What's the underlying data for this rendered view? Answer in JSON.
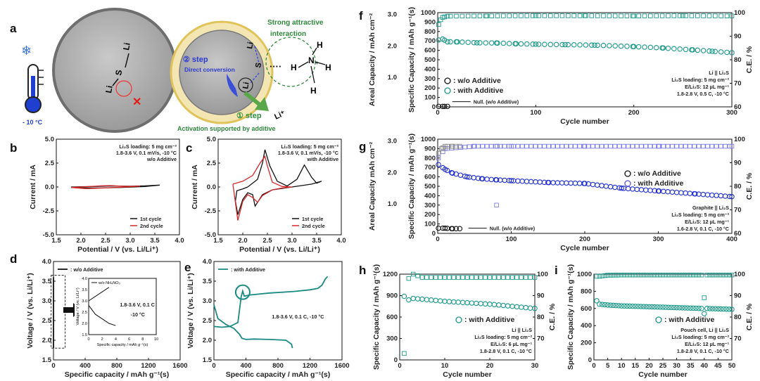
{
  "panels": {
    "a": {
      "label": "a",
      "temperature": "- 10 °C",
      "strong_attractive": "Strong attractive",
      "interaction": "interaction",
      "step2": "② step",
      "direct_conversion": "Direct conversion",
      "step1": "① step",
      "activation": "Activation supported by additive",
      "li_ion": "Li⁺",
      "atom_li": "Li",
      "atom_s": "S",
      "atom_n": "N",
      "atom_h": "H",
      "bond_dots": "····"
    },
    "b": {
      "label": "b",
      "chart_data": {
        "type": "line",
        "title": "",
        "xlabel": "Potential / V (vs. Li/Li⁺)",
        "ylabel": "Current / mA",
        "xlim": [
          1.5,
          4.0
        ],
        "ylim": [
          -5.0,
          5.0
        ],
        "xticks": [
          "1.5",
          "2.0",
          "2.5",
          "3.0",
          "3.5",
          "4.0"
        ],
        "yticks": [
          "-5.0",
          "-2.5",
          "0.0",
          "2.5",
          "5.0"
        ],
        "annotations": [
          "Li₂S loading: 5 mg cm⁻²",
          "1.8-3.6 V, 0.1 mV/s, -10 °C",
          "w/o Additive"
        ],
        "series": [
          {
            "name": "1st cycle",
            "color": "#111111",
            "x": [
              1.8,
              2.0,
              2.3,
              2.6,
              3.0,
              3.3,
              3.6,
              3.3,
              2.8,
              2.4,
              2.0,
              1.8
            ],
            "y": [
              0.0,
              0.02,
              0.06,
              0.1,
              0.08,
              0.12,
              0.2,
              0.05,
              -0.05,
              -0.1,
              -0.08,
              0.0
            ]
          },
          {
            "name": "2nd cycle",
            "color": "#d62728",
            "x": [
              1.8,
              2.1,
              2.4,
              2.6,
              2.9,
              3.2,
              2.8,
              2.4,
              2.1,
              1.8
            ],
            "y": [
              -0.05,
              0.02,
              0.12,
              0.15,
              0.06,
              0.08,
              -0.03,
              -0.12,
              -0.18,
              -0.05
            ]
          }
        ]
      }
    },
    "c": {
      "label": "c",
      "chart_data": {
        "type": "line",
        "title": "",
        "xlabel": "Potential / V (vs. Li/Li⁺)",
        "ylabel": "Current / mA",
        "xlim": [
          1.5,
          4.0
        ],
        "ylim": [
          -5.0,
          5.0
        ],
        "xticks": [
          "1.5",
          "2.0",
          "2.5",
          "3.0",
          "3.5",
          "4.0"
        ],
        "yticks": [
          "-5.0",
          "-2.5",
          "0.0",
          "2.5",
          "5.0"
        ],
        "annotations": [
          "Li₂S loading: 5 mg cm⁻²",
          "1.8-3.6 V, 0.1 mV/s, -10 °C",
          "with Additive"
        ],
        "series": [
          {
            "name": "1st cycle",
            "color": "#111111",
            "x": [
              2.1,
              2.3,
              2.4,
              2.45,
              2.55,
              2.7,
              2.9,
              3.1,
              3.25,
              3.4,
              3.5,
              3.6,
              3.4,
              3.0,
              2.6,
              2.4,
              2.25,
              2.2,
              2.1,
              2.0,
              1.9,
              1.85,
              1.88,
              2.0,
              2.1
            ],
            "y": [
              0.0,
              0.8,
              2.5,
              3.9,
              2.2,
              0.6,
              0.1,
              0.8,
              2.3,
              1.0,
              0.4,
              0.6,
              0.3,
              0.0,
              -0.3,
              -0.8,
              -2.0,
              -0.8,
              -0.6,
              -1.3,
              -2.9,
              -1.5,
              -0.4,
              -0.2,
              0.0
            ]
          },
          {
            "name": "2nd cycle",
            "color": "#d62728",
            "x": [
              1.8,
              2.0,
              2.2,
              2.35,
              2.45,
              2.5,
              2.6,
              2.8,
              3.0,
              2.8,
              2.6,
              2.4,
              2.3,
              2.2,
              2.1,
              2.0,
              1.9,
              1.86,
              1.8
            ],
            "y": [
              0.3,
              0.6,
              1.2,
              2.5,
              3.2,
              2.2,
              0.5,
              0.05,
              0.0,
              -0.1,
              -0.3,
              -0.9,
              -1.6,
              -1.1,
              -0.8,
              -1.5,
              -3.5,
              -2.0,
              0.3
            ]
          }
        ]
      }
    },
    "d": {
      "label": "d",
      "chart_data": {
        "type": "line",
        "title": "",
        "xlabel": "Specific capacity / mAh g⁻¹(s)",
        "ylabel": "Voltage / V (vs. Li/Li⁺)",
        "xlim": [
          0,
          1600
        ],
        "ylim": [
          1.5,
          4.0
        ],
        "xticks": [
          "0",
          "400",
          "800",
          "1200",
          "1600"
        ],
        "yticks": [
          "1.5",
          "2.0",
          "2.5",
          "3.0",
          "3.5",
          "4.0"
        ],
        "legend": [
          "w/o Additive"
        ],
        "inset": {
          "legend": "w/o NH₄NO₃",
          "xlabel": "Specific capacity / mAh g⁻¹(s)",
          "ylabel": "Voltage / V (vs. Li/Li⁺)",
          "xlim": [
            0,
            10
          ],
          "ylim": [
            1.5,
            4.0
          ],
          "xticks": [
            "0",
            "2",
            "4",
            "6",
            "8",
            "10"
          ],
          "yticks": [
            "1.5",
            "2.0",
            "2.5",
            "3.0",
            "3.5",
            "4.0"
          ],
          "note1": "1.8-3.6 V, 0.1 C",
          "note2": "-10 °C",
          "series": [
            {
              "name": "charge",
              "x": [
                0,
                1,
                2,
                3
              ],
              "y": [
                3.0,
                3.2,
                3.4,
                3.6
              ]
            },
            {
              "name": "discharge",
              "x": [
                0,
                1,
                2,
                3,
                4
              ],
              "y": [
                2.8,
                2.4,
                2.2,
                2.0,
                1.9
              ]
            }
          ]
        },
        "series": [
          {
            "name": "w/o Additive",
            "x": [
              0,
              0
            ],
            "y": [
              1.8,
              3.6
            ]
          }
        ]
      }
    },
    "e": {
      "label": "e",
      "chart_data": {
        "type": "line",
        "title": "",
        "xlabel": "Specific capacity / mAh g⁻¹(s)",
        "ylabel": "Voltage / V (vs. Li/Li⁺)",
        "xlim": [
          0,
          1600
        ],
        "ylim": [
          1.5,
          4.0
        ],
        "xticks": [
          "0",
          "400",
          "800",
          "1200",
          "1600"
        ],
        "yticks": [
          "1.5",
          "2.0",
          "2.5",
          "3.0",
          "3.5",
          "4.0"
        ],
        "legend": [
          "with Additive"
        ],
        "note": "1.8-3.6 V, 0.1 C, -10 °C",
        "series": [
          {
            "name": "charge",
            "x": [
              0,
              100,
              200,
              300,
              340,
              360,
              380,
              450,
              700,
              1000,
              1200,
              1300,
              1350,
              1390,
              1420
            ],
            "y": [
              2.35,
              2.33,
              2.35,
              2.45,
              3.1,
              3.25,
              3.12,
              3.15,
              3.2,
              3.24,
              3.28,
              3.32,
              3.4,
              3.55,
              3.62
            ]
          },
          {
            "name": "discharge",
            "x": [
              0,
              50,
              150,
              250,
              320,
              350,
              400,
              500,
              700,
              900,
              970,
              980
            ],
            "y": [
              2.9,
              2.55,
              2.4,
              2.3,
              2.15,
              2.05,
              2.02,
              2.03,
              2.02,
              2.0,
              1.9,
              1.8
            ]
          }
        ]
      }
    },
    "f": {
      "label": "f",
      "chart_data": {
        "type": "scatter",
        "xlabel": "Cycle number",
        "ylabel_left": "Specific Capacity / mAh g⁻¹(s)",
        "ylabel_area": "Areal Capacity / mAh cm⁻²",
        "ylabel_right": "C.E. / %",
        "xlim": [
          0,
          300
        ],
        "ylim": [
          0,
          1000
        ],
        "y2lim": [
          60,
          100
        ],
        "xticks": [
          "0",
          "100",
          "200",
          "300"
        ],
        "yticks": [
          "0",
          "100",
          "200",
          "300",
          "400",
          "500",
          "600",
          "700",
          "800",
          "900",
          "1000"
        ],
        "y2ticks": [
          "60",
          "70",
          "80",
          "90",
          "100"
        ],
        "areal_ticks": [
          "1.0",
          "2.0",
          "3.0"
        ],
        "legend": [
          ": w/o Additive",
          ": with Additive"
        ],
        "info": [
          "Li || Li₂S",
          "Li₂S loading: 5 mg cm⁻²",
          "E/Li₂S: 12 µL mg⁻¹",
          "1.8-2.8 V, 0.5 C, -10 °C"
        ],
        "null_note": "Null. (w/o Additive)",
        "series": [
          {
            "name": "with Additive capacity",
            "color": "#1a9988",
            "x": [
              1,
              5,
              10,
              20,
              40,
              60,
              80,
              100,
              130,
              160,
              200,
              230,
              260,
              280,
              300
            ],
            "y": [
              710,
              720,
              690,
              690,
              680,
              678,
              670,
              665,
              660,
              655,
              640,
              625,
              605,
              590,
              575
            ]
          },
          {
            "name": "with Additive C.E.",
            "color": "#1a9988",
            "x": [
              1,
              3,
              5,
              10,
              50,
              100,
              150,
              200,
              250,
              300
            ],
            "y": [
              95,
              97,
              98,
              98.5,
              98.6,
              98.7,
              98.7,
              98.6,
              98.7,
              98.6
            ]
          },
          {
            "name": "w/o Additive capacity",
            "color": "#111111",
            "x": [
              1,
              5,
              10
            ],
            "y": [
              5,
              5,
              5
            ]
          }
        ]
      }
    },
    "g": {
      "label": "g",
      "chart_data": {
        "type": "scatter",
        "xlabel": "Cycle number",
        "ylabel_left": "Specific Capacity / mAh g⁻¹(s)",
        "ylabel_area": "Areal Capacity mAh cm⁻²",
        "ylabel_right": "C.E. / %",
        "xlim": [
          0,
          400
        ],
        "ylim": [
          0,
          1000
        ],
        "y2lim": [
          60,
          100
        ],
        "xticks": [
          "0",
          "100",
          "200",
          "300",
          "400"
        ],
        "yticks": [
          "0",
          "100",
          "200",
          "300",
          "400",
          "500",
          "600",
          "700",
          "800",
          "900",
          "1000"
        ],
        "y2ticks": [
          "60",
          "70",
          "80",
          "90",
          "100"
        ],
        "areal_ticks": [
          "1.0",
          "2.0",
          "3.0"
        ],
        "legend": [
          ": w/o Additive",
          ": with Additive"
        ],
        "info": [
          "Graphite || Li₂S",
          "Li₂S loading: 5 mg cm⁻²",
          "E/Li₂S: 12 µL mg⁻¹",
          "1.6-2.8 V, 0.1 C, -10 °C"
        ],
        "null_note": "Null. (w/o Additive)",
        "series": [
          {
            "name": "with Additive capacity",
            "color": "#1f2fd1",
            "x": [
              1,
              10,
              20,
              40,
              60,
              80,
              100,
              150,
              200,
              250,
              300,
              350,
              400
            ],
            "y": [
              730,
              680,
              640,
              600,
              580,
              568,
              560,
              540,
              530,
              480,
              450,
              420,
              390
            ]
          },
          {
            "name": "with Additive C.E.",
            "color": "#7b7be0",
            "x": [
              1,
              10,
              50,
              79,
              80,
              81,
              100,
              200,
              300,
              400
            ],
            "y": [
              92,
              96,
              97,
              97,
              72,
              97,
              97,
              97,
              97,
              97
            ]
          },
          {
            "name": "w/o Additive capacity",
            "color": "#111111",
            "x": [
              1,
              10,
              20,
              30
            ],
            "y": [
              55,
              55,
              50,
              50
            ]
          },
          {
            "name": "w/o Additive C.E.",
            "color": "#888888",
            "x": [
              1,
              5,
              10,
              20,
              30
            ],
            "y": [
              94,
              96,
              97,
              97,
              97
            ]
          }
        ]
      }
    },
    "h": {
      "label": "h",
      "chart_data": {
        "type": "scatter",
        "xlabel": "Cycle number",
        "ylabel_left": "Specific Capacity / mAh g⁻¹(s)",
        "ylabel_right": "C.E. / %",
        "xlim": [
          0,
          30
        ],
        "ylim": [
          0,
          1200
        ],
        "y2lim": [
          60,
          100
        ],
        "xticks": [
          "0",
          "10",
          "20",
          "30"
        ],
        "yticks": [
          "0",
          "300",
          "600",
          "900",
          "1200"
        ],
        "y2ticks": [
          "70",
          "80",
          "90",
          "100"
        ],
        "legend": [
          ": with Additive"
        ],
        "info": [
          "Li || Li₂S",
          "Li₂S loading: 5 mg cm⁻²",
          "E/Li₂S: 6 µL mg⁻¹",
          "1.8-2.8 V, 0.1 C, -10 °C"
        ],
        "series": [
          {
            "name": "capacity",
            "color": "#1a9988",
            "x": [
              1,
              2,
              3,
              5,
              10,
              15,
              20,
              25,
              30
            ],
            "y": [
              890,
              840,
              860,
              850,
              820,
              800,
              780,
              750,
              720
            ]
          },
          {
            "name": "C.E.",
            "color": "#1a9988",
            "x": [
              1,
              2,
              3,
              5,
              10,
              15,
              20,
              25,
              30
            ],
            "y": [
              63,
              98,
              100,
              98.5,
              98.5,
              98.5,
              98.5,
              98.5,
              98.5
            ]
          }
        ]
      }
    },
    "i": {
      "label": "i",
      "chart_data": {
        "type": "scatter",
        "xlabel": "Cycle number",
        "ylabel_left": "Specific Capacity / mAh g⁻¹(s)",
        "ylabel_right": "C.E. / %",
        "xlim": [
          0,
          50
        ],
        "ylim": [
          0,
          1000
        ],
        "y2lim": [
          60,
          100
        ],
        "xticks": [
          "0",
          "5",
          "10",
          "15",
          "20",
          "25",
          "30",
          "35",
          "40",
          "45",
          "50"
        ],
        "yticks": [
          "0",
          "200",
          "400",
          "600",
          "800",
          "1000"
        ],
        "y2ticks": [
          "70",
          "80",
          "90",
          "100"
        ],
        "legend": [
          ": with Additive"
        ],
        "info": [
          "Pouch cell, Li || Li₂S",
          "Li₂S loading: 5 mg cm⁻²",
          "E/Li₂S: 12 µL mg⁻¹",
          "1.8-2.8 V, 0.1 C, -10 °C"
        ],
        "series": [
          {
            "name": "capacity",
            "color": "#1a9988",
            "x": [
              1,
              2,
              5,
              10,
              20,
              30,
              39,
              40,
              41,
              45,
              50
            ],
            "y": [
              690,
              650,
              640,
              630,
              620,
              610,
              600,
              540,
              600,
              595,
              590
            ]
          },
          {
            "name": "C.E.",
            "color": "#1a9988",
            "x": [
              1,
              2,
              5,
              10,
              20,
              30,
              39,
              40,
              41,
              45,
              50
            ],
            "y": [
              99,
              99,
              99.5,
              99.6,
              99.6,
              99.6,
              99.6,
              89,
              99.6,
              99.6,
              99.6
            ]
          }
        ]
      }
    }
  }
}
